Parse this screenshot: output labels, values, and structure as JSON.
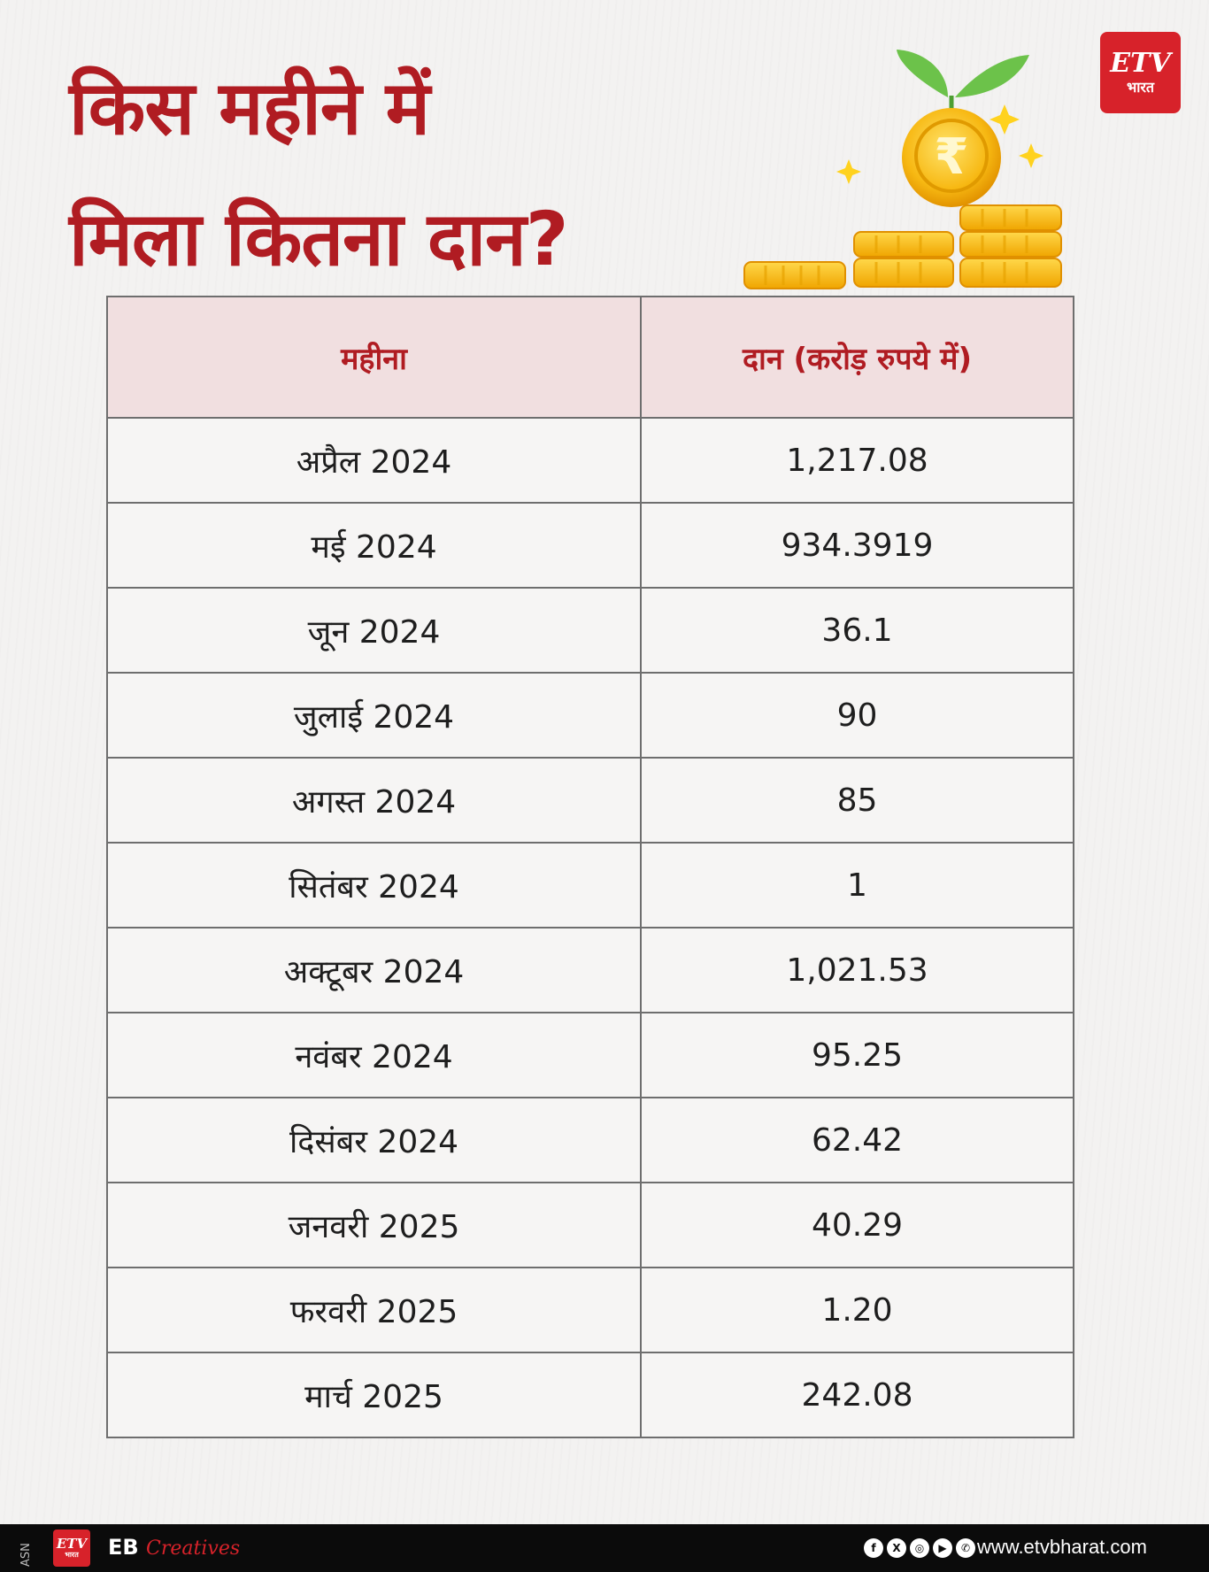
{
  "title": {
    "line1": "किस महीने में",
    "line2": "मिला कितना दान?"
  },
  "brand": {
    "logo_mark": "ETV",
    "logo_sub": "भारत",
    "accent_color": "#b01c22"
  },
  "table": {
    "headers": [
      "महीना",
      "दान (करोड़ रुपये में)"
    ],
    "rows": [
      [
        "अप्रैल 2024",
        "1,217.08"
      ],
      [
        "मई 2024",
        "934.3919"
      ],
      [
        "जून 2024",
        "36.1"
      ],
      [
        "जुलाई 2024",
        "90"
      ],
      [
        "अगस्त 2024",
        "85"
      ],
      [
        "सितंबर 2024",
        "1"
      ],
      [
        "अक्टूबर 2024",
        "1,021.53"
      ],
      [
        "नवंबर 2024",
        "95.25"
      ],
      [
        "दिसंबर 2024",
        "62.42"
      ],
      [
        "जनवरी 2025",
        "40.29"
      ],
      [
        "फरवरी 2025",
        "1.20"
      ],
      [
        "मार्च 2025",
        "242.08"
      ]
    ]
  },
  "footer": {
    "asn": "ASN",
    "eb": "EB",
    "creatives": "Creatives",
    "website": "www.etvbharat.com",
    "social_icons": [
      "facebook-icon",
      "x-icon",
      "instagram-icon",
      "youtube-icon",
      "whatsapp-icon"
    ]
  }
}
